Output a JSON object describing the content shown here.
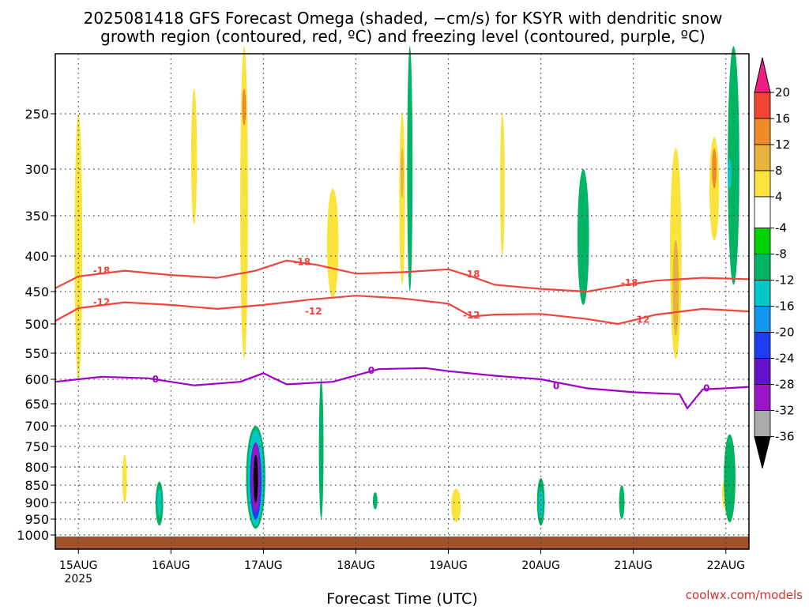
{
  "title": {
    "line1": "2025081418 GFS Forecast Omega (shaded, −cm/s) for KSYR with dendritic snow",
    "line2": "growth region (contoured, red, ºC) and freezing level (contoured, purple, ºC)"
  },
  "xlabel": "Forecast Time (UTC)",
  "credit": "coolwx.com/models",
  "colors": {
    "dgz_contour": "#f0453e",
    "freezing_contour": "#a000c8",
    "ground": "#a0522d",
    "grid": "#444444"
  },
  "chart_data": {
    "type": "heatmap",
    "title": "2025081418 GFS Forecast Omega (shaded, −cm/s) for KSYR with dendritic snow growth region (contoured, red, ºC) and freezing level (contoured, purple, ºC)",
    "xlabel": "Forecast Time (UTC)",
    "ylabel": "",
    "x_ticks": [
      "15AUG",
      "16AUG",
      "17AUG",
      "18AUG",
      "19AUG",
      "20AUG",
      "21AUG",
      "22AUG"
    ],
    "x_year_label": "2025",
    "x_range_hours": [
      -6,
      174
    ],
    "y_ticks": [
      250,
      300,
      350,
      400,
      450,
      500,
      550,
      600,
      650,
      700,
      750,
      800,
      850,
      900,
      950,
      1000
    ],
    "y_range_hpa": [
      200,
      1010
    ],
    "y_scale": "log-pressure",
    "grid": true,
    "colorbar": {
      "ticks": [
        20,
        16,
        12,
        8,
        4,
        -4,
        -8,
        -12,
        -16,
        -20,
        -24,
        -28,
        -32,
        -36
      ],
      "colors": [
        "#ffffff",
        "#fae33c",
        "#e6b43c",
        "#f08c28",
        "#f04632",
        "#f01e82",
        "#00d200",
        "#00b464",
        "#00c8c8",
        "#1496f0",
        "#1e3cf0",
        "#6414c8",
        "#9b14c8",
        "#aaaaaa",
        "#000000"
      ]
    },
    "contours": [
      {
        "name": "-18",
        "color": "#f0453e",
        "points": [
          [
            -6,
            445
          ],
          [
            0,
            428
          ],
          [
            12,
            420
          ],
          [
            24,
            426
          ],
          [
            36,
            430
          ],
          [
            46,
            420
          ],
          [
            54,
            406
          ],
          [
            62,
            412
          ],
          [
            72,
            424
          ],
          [
            84,
            422
          ],
          [
            96,
            418
          ],
          [
            102,
            428
          ],
          [
            108,
            440
          ],
          [
            120,
            446
          ],
          [
            132,
            450
          ],
          [
            142,
            440
          ],
          [
            150,
            434
          ],
          [
            162,
            430
          ],
          [
            174,
            432
          ]
        ]
      },
      {
        "name": "-12",
        "color": "#f0453e",
        "points": [
          [
            -6,
            495
          ],
          [
            0,
            475
          ],
          [
            12,
            466
          ],
          [
            24,
            470
          ],
          [
            36,
            476
          ],
          [
            48,
            470
          ],
          [
            60,
            462
          ],
          [
            72,
            456
          ],
          [
            84,
            460
          ],
          [
            96,
            468
          ],
          [
            102,
            488
          ],
          [
            108,
            485
          ],
          [
            120,
            484
          ],
          [
            132,
            492
          ],
          [
            140,
            500
          ],
          [
            150,
            485
          ],
          [
            162,
            476
          ],
          [
            174,
            480
          ]
        ]
      },
      {
        "name": "0",
        "color": "#a000c8",
        "points": [
          [
            -6,
            605
          ],
          [
            6,
            595
          ],
          [
            18,
            598
          ],
          [
            30,
            612
          ],
          [
            42,
            605
          ],
          [
            48,
            588
          ],
          [
            54,
            610
          ],
          [
            66,
            605
          ],
          [
            78,
            580
          ],
          [
            90,
            578
          ],
          [
            96,
            584
          ],
          [
            108,
            593
          ],
          [
            120,
            600
          ],
          [
            132,
            618
          ],
          [
            144,
            626
          ],
          [
            150,
            628
          ],
          [
            156,
            630
          ],
          [
            158,
            660
          ],
          [
            162,
            620
          ],
          [
            168,
            618
          ],
          [
            174,
            615
          ]
        ]
      }
    ],
    "contour_labels": [
      {
        "text": "-18",
        "x": 6,
        "y": 420
      },
      {
        "text": "-18",
        "x": 58,
        "y": 408
      },
      {
        "text": "-18",
        "x": 102,
        "y": 425
      },
      {
        "text": "-18",
        "x": 143,
        "y": 437
      },
      {
        "text": "-12",
        "x": 6,
        "y": 466
      },
      {
        "text": "-12",
        "x": 61,
        "y": 480
      },
      {
        "text": "-12",
        "x": 102,
        "y": 486
      },
      {
        "text": "-12",
        "x": 146,
        "y": 493
      },
      {
        "text": "0",
        "x": 20,
        "y": 600
      },
      {
        "text": "0",
        "x": 76,
        "y": 583
      },
      {
        "text": "0",
        "x": 124,
        "y": 613
      },
      {
        "text": "0",
        "x": 163,
        "y": 618
      }
    ],
    "shaded_regions": [
      {
        "value": -36,
        "hour": 46,
        "p_top": 770,
        "p_bottom": 900,
        "width_h": 1.2
      },
      {
        "value": -28,
        "hour": 46,
        "p_top": 740,
        "p_bottom": 930,
        "width_h": 2.2
      },
      {
        "value": -20,
        "hour": 46,
        "p_top": 740,
        "p_bottom": 950,
        "width_h": 3.0
      },
      {
        "value": -12,
        "hour": 46,
        "p_top": 710,
        "p_bottom": 970,
        "width_h": 4.0
      },
      {
        "value": -8,
        "hour": 46,
        "p_top": 700,
        "p_bottom": 980,
        "width_h": 5.0
      },
      {
        "value": -8,
        "hour": 21,
        "p_top": 840,
        "p_bottom": 970,
        "width_h": 2.0
      },
      {
        "value": -12,
        "hour": 21,
        "p_top": 860,
        "p_bottom": 940,
        "width_h": 1.0
      },
      {
        "value": -8,
        "hour": 120,
        "p_top": 830,
        "p_bottom": 970,
        "width_h": 2.0
      },
      {
        "value": -12,
        "hour": 120,
        "p_top": 860,
        "p_bottom": 950,
        "width_h": 1.0
      },
      {
        "value": -8,
        "hour": 131,
        "p_top": 300,
        "p_bottom": 470,
        "width_h": 3.0
      },
      {
        "value": -8,
        "hour": 141,
        "p_top": 850,
        "p_bottom": 950,
        "width_h": 1.4
      },
      {
        "value": -8,
        "hour": 170,
        "p_top": 200,
        "p_bottom": 440,
        "width_h": 3.0
      },
      {
        "value": -12,
        "hour": 169,
        "p_top": 290,
        "p_bottom": 320,
        "width_h": 1.0
      },
      {
        "value": -8,
        "hour": 169,
        "p_top": 720,
        "p_bottom": 960,
        "width_h": 3.0
      },
      {
        "value": -8,
        "hour": 63,
        "p_top": 600,
        "p_bottom": 950,
        "width_h": 1.2
      },
      {
        "value": -8,
        "hour": 86,
        "p_top": 200,
        "p_bottom": 450,
        "width_h": 1.4
      },
      {
        "value": -8,
        "hour": 77,
        "p_top": 870,
        "p_bottom": 920,
        "width_h": 1.2
      },
      {
        "value": 4,
        "hour": 0,
        "p_top": 250,
        "p_bottom": 600,
        "width_h": 2.0
      },
      {
        "value": 4,
        "hour": 43,
        "p_top": 200,
        "p_bottom": 560,
        "width_h": 2.0
      },
      {
        "value": 12,
        "hour": 43,
        "p_top": 230,
        "p_bottom": 260,
        "width_h": 1.0
      },
      {
        "value": 4,
        "hour": 155,
        "p_top": 280,
        "p_bottom": 560,
        "width_h": 3.0
      },
      {
        "value": 8,
        "hour": 155,
        "p_top": 380,
        "p_bottom": 520,
        "width_h": 1.6
      },
      {
        "value": 4,
        "hour": 165,
        "p_top": 270,
        "p_bottom": 380,
        "width_h": 2.5
      },
      {
        "value": 12,
        "hour": 165,
        "p_top": 280,
        "p_bottom": 320,
        "width_h": 1.2
      },
      {
        "value": 4,
        "hour": 168,
        "p_top": 830,
        "p_bottom": 920,
        "width_h": 2.0
      },
      {
        "value": 4,
        "hour": 12,
        "p_top": 770,
        "p_bottom": 900,
        "width_h": 1.2
      },
      {
        "value": 4,
        "hour": 66,
        "p_top": 320,
        "p_bottom": 460,
        "width_h": 3.0
      },
      {
        "value": 4,
        "hour": 84,
        "p_top": 250,
        "p_bottom": 440,
        "width_h": 1.5
      },
      {
        "value": 8,
        "hour": 84,
        "p_top": 280,
        "p_bottom": 330,
        "width_h": 0.8
      },
      {
        "value": 4,
        "hour": 98,
        "p_top": 860,
        "p_bottom": 960,
        "width_h": 2.5
      },
      {
        "value": 4,
        "hour": 30,
        "p_top": 230,
        "p_bottom": 360,
        "width_h": 1.5
      },
      {
        "value": 4,
        "hour": 110,
        "p_top": 250,
        "p_bottom": 400,
        "width_h": 1.2
      }
    ]
  }
}
